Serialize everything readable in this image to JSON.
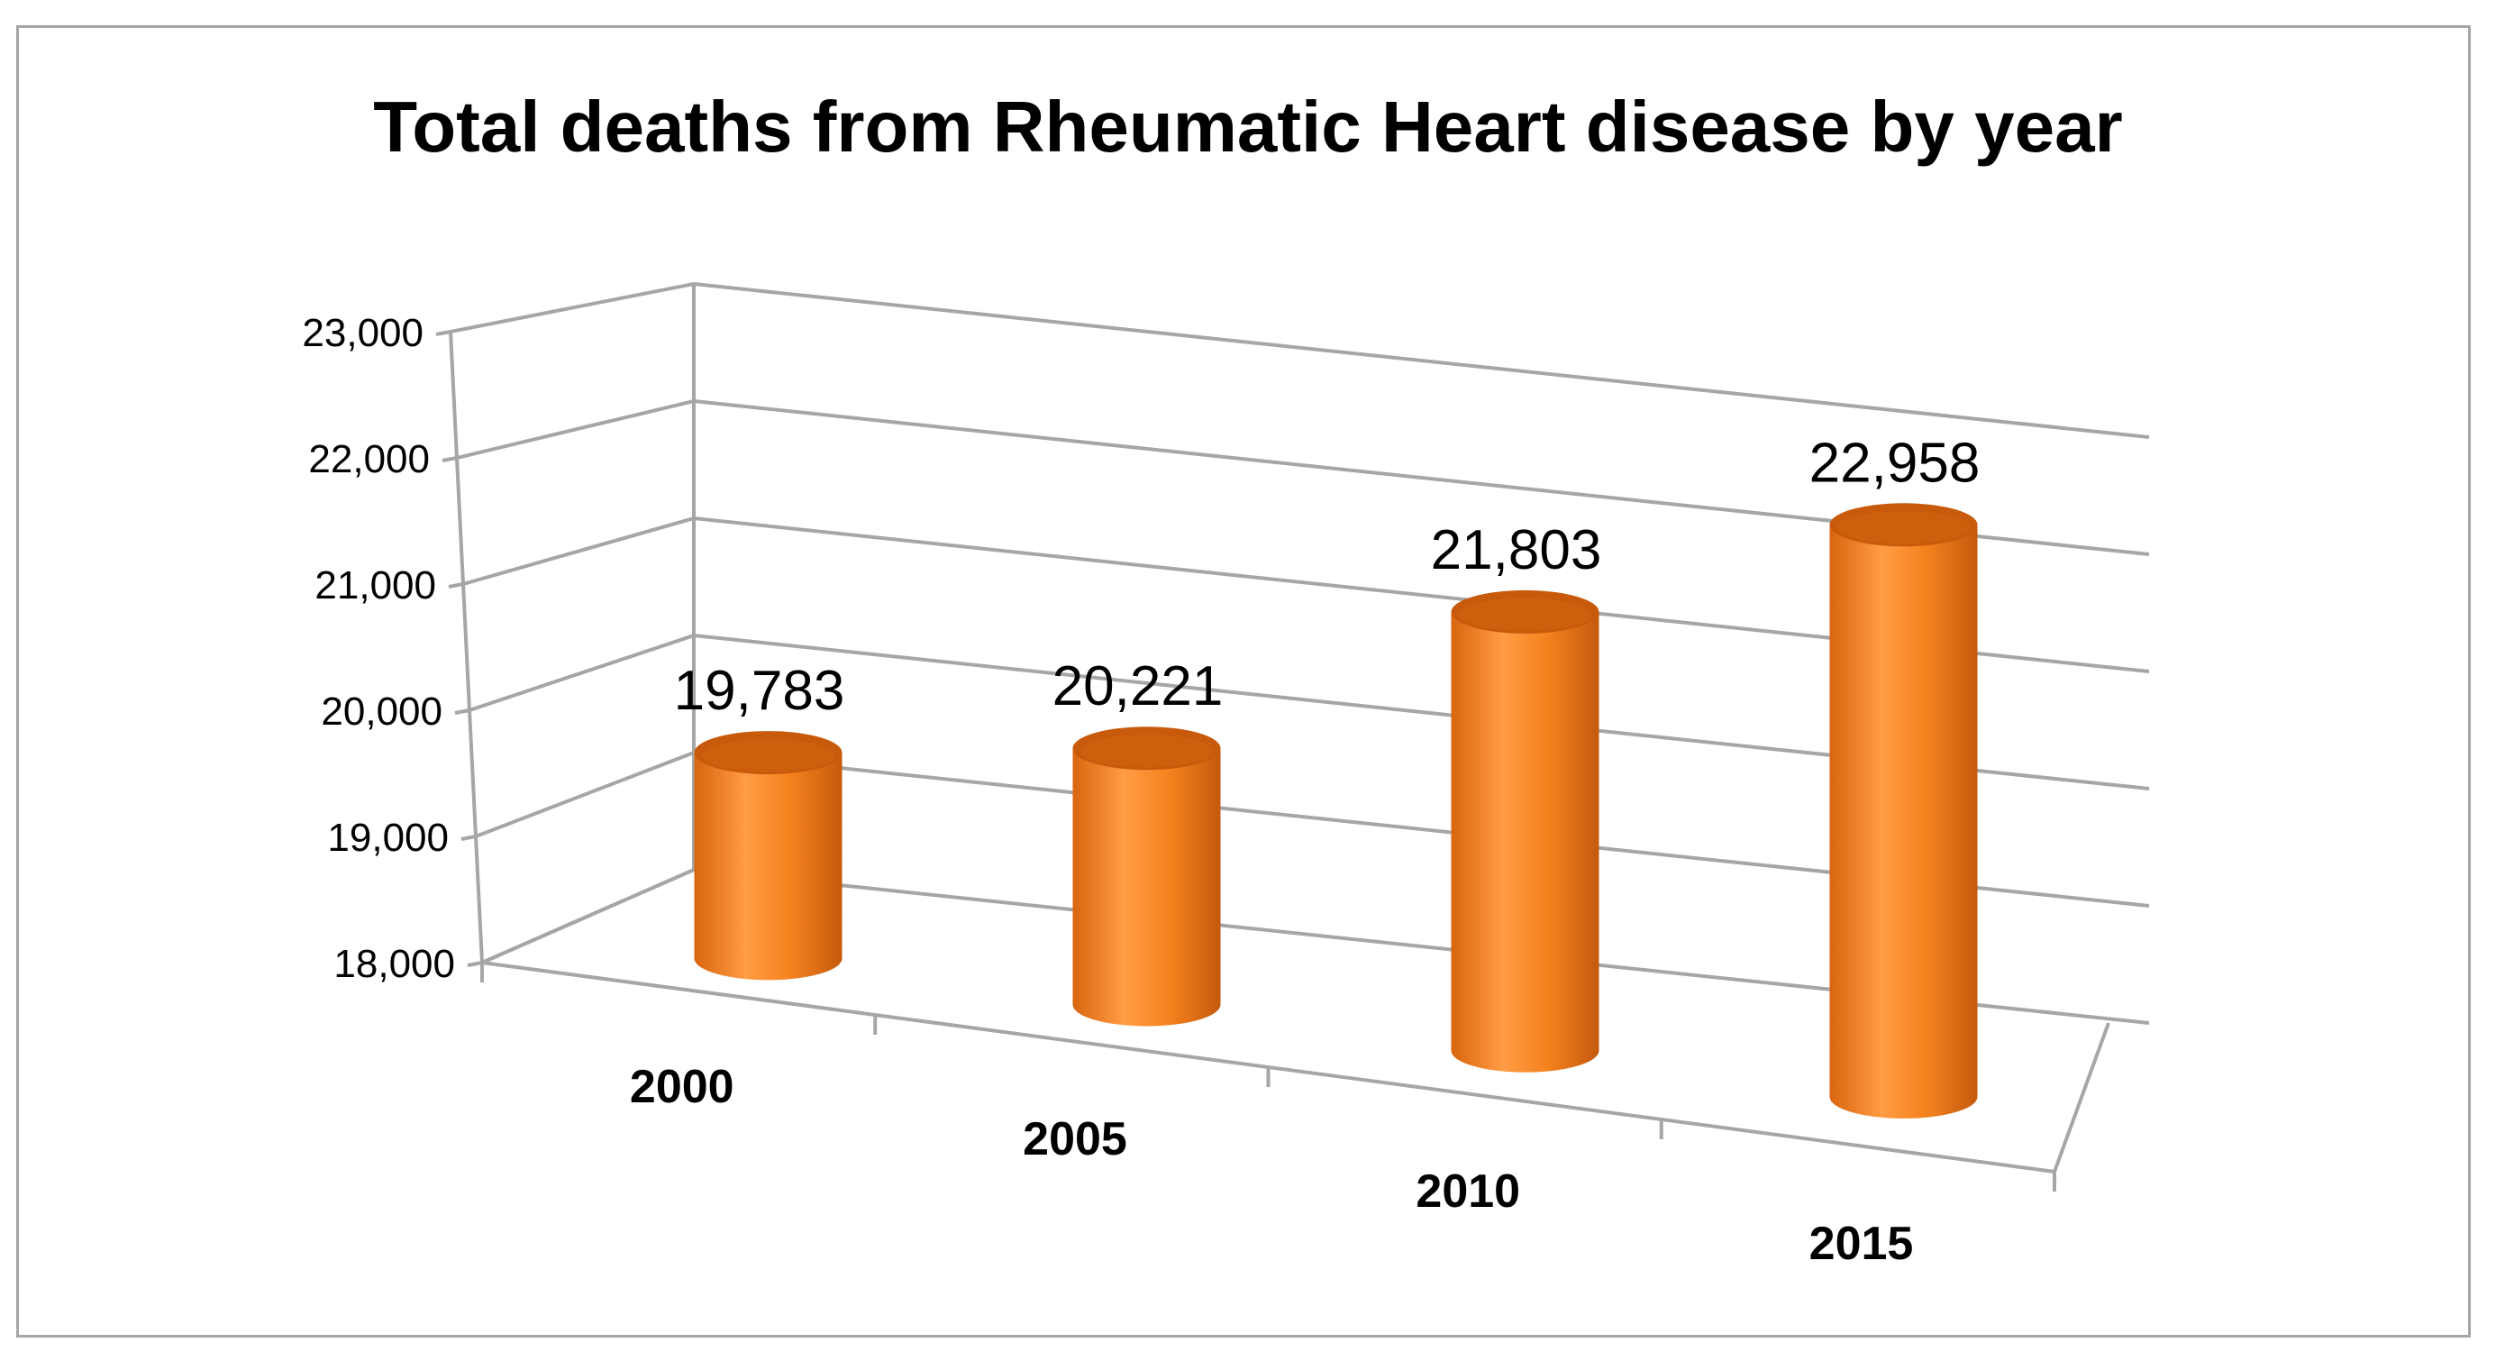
{
  "chart_data": {
    "type": "bar",
    "style": "3d-cylinder",
    "title": "Total deaths from Rheumatic Heart disease by year",
    "xlabel": "",
    "ylabel": "",
    "categories": [
      "2000",
      "2005",
      "2010",
      "2015"
    ],
    "values": [
      19783,
      20221,
      21803,
      22958
    ],
    "data_labels": [
      "19,783",
      "20,221",
      "21,803",
      "22,958"
    ],
    "ylim": [
      18000,
      23000
    ],
    "yticks": [
      18000,
      19000,
      20000,
      21000,
      22000,
      23000
    ],
    "ytick_labels": [
      "18,000",
      "19,000",
      "20,000",
      "21,000",
      "22,000",
      "23,000"
    ],
    "grid": true,
    "legend": "none",
    "colors": {
      "bar": "#f07d1a",
      "bar_dark": "#c85a0c",
      "bar_light": "#ff9a3c",
      "grid": "#a6a6a6"
    }
  }
}
